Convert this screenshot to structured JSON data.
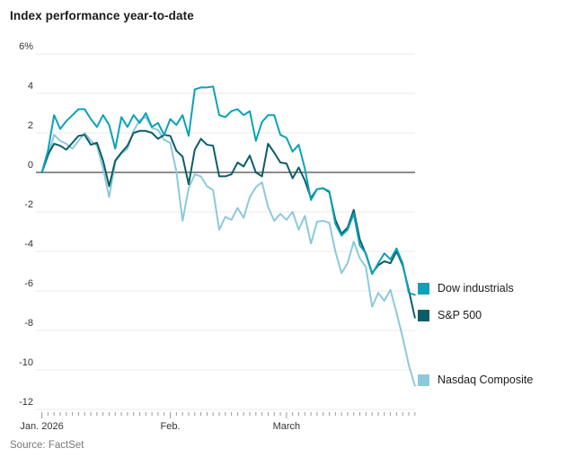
{
  "title": "Index performance year-to-date",
  "source": "Source: FactSet",
  "colors": {
    "title_text": "#1b1b1b",
    "axis_text": "#333333",
    "gridline": "#e9e9e9",
    "zero_line": "#8c8c8c",
    "tick": "#999999",
    "source_text": "#777777"
  },
  "chart_data": {
    "type": "line",
    "title": "Index performance year-to-date",
    "xlabel": "",
    "ylabel": "Percent change year-to-date (first y tick shown as 6%)",
    "ylim": [
      -12,
      6
    ],
    "grid": true,
    "legend_position": "right",
    "x_unit": "trading days, Jan 2 through Mar 31, 2026",
    "y_ticks": [
      {
        "label": "6%",
        "value": 6
      },
      {
        "label": "4",
        "value": 4
      },
      {
        "label": "2",
        "value": 2
      },
      {
        "label": "0",
        "value": 0
      },
      {
        "label": "-2",
        "value": -2
      },
      {
        "label": "-4",
        "value": -4
      },
      {
        "label": "-6",
        "value": -6
      },
      {
        "label": "-8",
        "value": -8
      },
      {
        "label": "-10",
        "value": -10
      },
      {
        "label": "-12",
        "value": -12
      }
    ],
    "x_months": [
      {
        "label": "Jan. 2026",
        "day": 1
      },
      {
        "label": "Feb.",
        "day": 22
      },
      {
        "label": "March",
        "day": 41
      }
    ],
    "series": [
      {
        "name": "Dow industrials",
        "color": "#0aa2b8",
        "end_value": -6.2,
        "values": [
          0.0,
          1.1,
          2.9,
          2.2,
          2.6,
          2.9,
          3.2,
          3.2,
          2.7,
          2.3,
          2.9,
          2.4,
          1.2,
          2.8,
          2.3,
          2.9,
          2.5,
          3.0,
          2.3,
          2.5,
          1.9,
          2.7,
          2.4,
          2.9,
          1.85,
          4.2,
          4.3,
          4.3,
          4.35,
          2.9,
          2.8,
          3.1,
          3.2,
          2.9,
          3.1,
          1.6,
          2.55,
          2.9,
          2.9,
          1.9,
          1.75,
          1.05,
          1.4,
          0.2,
          -1.4,
          -0.85,
          -0.8,
          -0.95,
          -2.6,
          -3.2,
          -2.9,
          -2.1,
          -3.7,
          -4.1,
          -5.15,
          -4.6,
          -4.1,
          -4.4,
          -3.85,
          -4.6,
          -6.1,
          -6.2
        ]
      },
      {
        "name": "S&P 500",
        "color": "#0b5e67",
        "end_value": -7.35,
        "values": [
          0.0,
          0.9,
          1.45,
          1.35,
          1.15,
          1.5,
          1.85,
          1.9,
          1.4,
          1.5,
          0.6,
          -0.7,
          0.6,
          1.0,
          1.35,
          2.0,
          2.1,
          2.1,
          2.0,
          1.7,
          1.9,
          1.85,
          1.1,
          0.8,
          -0.6,
          1.15,
          1.7,
          1.4,
          1.35,
          -0.2,
          -0.2,
          -0.1,
          0.5,
          0.3,
          0.85,
          0.0,
          -0.2,
          1.45,
          1.0,
          0.5,
          0.45,
          -0.3,
          0.25,
          -0.4,
          -1.3,
          -0.85,
          -0.8,
          -1.0,
          -2.4,
          -3.1,
          -2.8,
          -1.9,
          -3.4,
          -4.15,
          -5.1,
          -4.7,
          -4.5,
          -4.6,
          -4.0,
          -4.7,
          -5.95,
          -7.35
        ]
      },
      {
        "name": "Nasdaq Composite",
        "color": "#8cc9db",
        "end_value": -10.8,
        "values": [
          0.0,
          0.8,
          1.9,
          1.6,
          1.45,
          1.2,
          1.6,
          2.0,
          1.6,
          1.35,
          0.2,
          -1.25,
          0.55,
          0.95,
          1.2,
          2.1,
          2.65,
          2.8,
          2.25,
          2.15,
          1.65,
          1.5,
          0.05,
          -2.45,
          -0.8,
          -0.1,
          -0.2,
          -0.7,
          -0.9,
          -2.9,
          -2.25,
          -2.4,
          -1.8,
          -2.3,
          -1.25,
          -0.75,
          -0.5,
          -1.75,
          -2.45,
          -2.1,
          -2.4,
          -2.0,
          -2.9,
          -2.2,
          -3.6,
          -2.5,
          -2.45,
          -2.55,
          -4.0,
          -5.1,
          -4.6,
          -3.5,
          -4.35,
          -4.8,
          -6.8,
          -6.1,
          -6.5,
          -5.95,
          -7.1,
          -8.35,
          -9.75,
          -10.8
        ]
      }
    ]
  }
}
